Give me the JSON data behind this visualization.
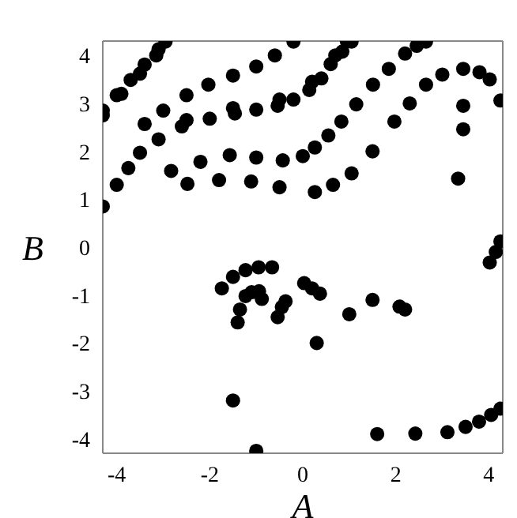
{
  "chart_data": {
    "type": "scatter",
    "xlabel": "A",
    "ylabel": "B",
    "marker": "circle",
    "xlim": [
      -4.3,
      4.3
    ],
    "ylim": [
      -4.3,
      4.3
    ],
    "xticks": [
      -4,
      -2,
      0,
      2,
      4
    ],
    "yticks": [
      -4,
      -3,
      -2,
      -1,
      0,
      1,
      2,
      3,
      4
    ],
    "series": [
      {
        "color": "#000000",
        "x": [
          -4.3,
          -4.0,
          -3.7,
          -3.4,
          -3.1,
          -2.95,
          -4.3,
          -3.9,
          -3.5,
          -3.15,
          -3.4,
          -3.0,
          -2.5,
          -2.03,
          -1.5,
          -1.0,
          -0.6,
          -0.2,
          -4.3,
          -4.0,
          -3.75,
          -3.5,
          -3.1,
          -2.6,
          -2.0,
          -1.46,
          -1.0,
          -0.54,
          -0.2,
          0.14,
          0.4,
          0.6,
          0.85,
          1.05,
          -2.5,
          -1.5,
          -0.5,
          0.2,
          0.7,
          0.95,
          -2.83,
          -2.2,
          -1.57,
          -1.0,
          -0.43,
          0.0,
          0.26,
          0.55,
          0.83,
          1.15,
          1.51,
          1.85,
          2.2,
          2.45,
          2.65,
          0.26,
          0.65,
          1.05,
          1.5,
          1.97,
          2.3,
          2.65,
          3.0,
          3.45,
          3.8,
          4.02,
          4.25,
          -2.48,
          -1.8,
          -1.11,
          -0.5,
          3.45,
          3.45,
          3.34,
          -1.74,
          -1.5,
          -1.23,
          -0.95,
          -0.66,
          -1.4,
          -1.35,
          -1.23,
          -1.1,
          -0.94,
          -0.88,
          -0.54,
          -0.45,
          -0.37,
          0.03,
          0.2,
          0.37,
          2.08,
          2.2,
          1.5,
          1.0,
          2.42,
          3.11,
          3.5,
          3.79,
          4.05,
          4.25,
          4.02,
          4.15,
          4.25,
          -1.0,
          -1.5,
          0.3,
          1.6
        ],
        "values": [
          2.85,
          3.17,
          3.49,
          3.81,
          4.13,
          4.29,
          2.75,
          3.2,
          3.62,
          4.0,
          2.57,
          2.85,
          3.17,
          3.39,
          3.58,
          3.77,
          4.0,
          4.29,
          0.85,
          1.3,
          1.65,
          1.97,
          2.25,
          2.52,
          2.68,
          2.79,
          2.87,
          2.95,
          3.08,
          3.28,
          3.52,
          3.82,
          4.08,
          4.29,
          2.65,
          2.9,
          3.08,
          3.45,
          4.0,
          4.29,
          1.59,
          1.78,
          1.92,
          1.87,
          1.81,
          1.9,
          2.08,
          2.33,
          2.62,
          2.98,
          3.39,
          3.72,
          4.04,
          4.2,
          4.29,
          1.15,
          1.3,
          1.54,
          2.0,
          2.62,
          3.0,
          3.39,
          3.6,
          3.72,
          3.65,
          3.5,
          3.06,
          1.32,
          1.4,
          1.37,
          1.25,
          2.95,
          2.46,
          1.43,
          -0.86,
          -0.62,
          -0.48,
          -0.42,
          -0.42,
          -1.57,
          -1.3,
          -1.02,
          -0.94,
          -0.92,
          -1.08,
          -1.46,
          -1.25,
          -1.13,
          -0.75,
          -0.86,
          -0.97,
          -1.24,
          -1.3,
          -1.1,
          -1.4,
          -3.89,
          -3.86,
          -3.75,
          -3.64,
          -3.5,
          -3.37,
          -0.32,
          -0.1,
          0.12,
          -4.25,
          -3.2,
          -2.0,
          -3.9
        ]
      }
    ]
  }
}
